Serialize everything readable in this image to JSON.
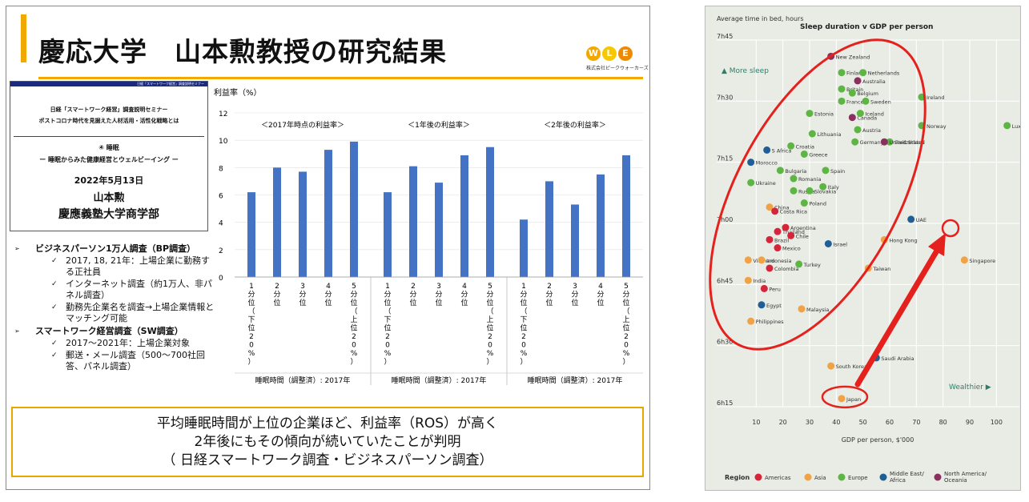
{
  "slide": {
    "title": "慶応大学　山本勲教授の研究結果",
    "logo": {
      "letters": [
        "W",
        "L",
        "E"
      ],
      "subtitle": "株式会社ピークウォーカーズ"
    },
    "cover": {
      "header_small": "日経「スマートワーク経営」調査説明セミナー",
      "line1": "日経「スマートワーク経営」調査説明セミナー",
      "line2": "ポストコロナ時代を見据えた人材活用・活性化戦略とは",
      "line3": "④ 睡眠",
      "line4": "ー 睡眠からみた健康経営とウェルビーイング ー",
      "date": "2022年5月13日",
      "name": "山本勲",
      "affiliation": "慶應義塾大学商学部"
    },
    "bullets": [
      {
        "level": 1,
        "text": "ビジネスパーソン1万人調査（BP調査）"
      },
      {
        "level": 2,
        "text": "2017, 18, 21年：上場企業に勤務する正社員"
      },
      {
        "level": 2,
        "text": "インターネット調査（約1万人、非パネル調査）"
      },
      {
        "level": 2,
        "text": "勤務先企業名を調査→上場企業情報とマッチング可能"
      },
      {
        "level": 1,
        "text": "スマートワーク経営調査（SW調査）"
      },
      {
        "level": 2,
        "text": "2017～2021年：上場企業対象"
      },
      {
        "level": 2,
        "text": "郵送・メール調査（500～700社回答、パネル調査）"
      }
    ],
    "summary": [
      "平均睡眠時間が上位の企業ほど、利益率（ROS）が高く",
      "2年後にもその傾向が続いていたことが判明",
      "（ 日経スマートワーク調査・ビジネスパーソン調査）"
    ]
  },
  "chart_data": [
    {
      "type": "bar",
      "ylabel": "利益率（%）",
      "ylim": [
        0,
        12
      ],
      "yticks": [
        0,
        2,
        4,
        6,
        8,
        10,
        12
      ],
      "categories": [
        "1分位（下位20%）",
        "2分位",
        "3分位",
        "4分位",
        "5分位（上位20%）"
      ],
      "bar_color": "#4472c4",
      "panels": [
        {
          "title": "＜2017年時点の利益率＞",
          "xlabel": "睡眠時間（調整済）: 2017年",
          "values": [
            6.2,
            8.0,
            7.7,
            9.3,
            9.9
          ]
        },
        {
          "title": "＜1年後の利益率＞",
          "xlabel": "睡眠時間（調整済）: 2017年",
          "values": [
            6.2,
            8.1,
            6.9,
            8.9,
            9.5
          ]
        },
        {
          "title": "＜2年後の利益率＞",
          "xlabel": "睡眠時間（調整済）: 2017年",
          "values": [
            4.2,
            7.0,
            5.3,
            7.5,
            8.9
          ]
        }
      ]
    },
    {
      "type": "scatter",
      "title": "Sleep duration v GDP per person",
      "ylabel": "Average time in bed, hours",
      "xlabel": "GDP per person, $'000",
      "xlim": [
        0,
        105
      ],
      "xticks": [
        10,
        20,
        30,
        40,
        50,
        60,
        70,
        80,
        90,
        100
      ],
      "ylim": [
        375,
        465
      ],
      "yticks": [
        {
          "v": 465,
          "label": "7h45"
        },
        {
          "v": 450,
          "label": "7h30"
        },
        {
          "v": 435,
          "label": "7h15"
        },
        {
          "v": 420,
          "label": "7h00"
        },
        {
          "v": 405,
          "label": "6h45"
        },
        {
          "v": 390,
          "label": "6h30"
        },
        {
          "v": 375,
          "label": "6h15"
        }
      ],
      "annotations": {
        "more_sleep": "More sleep",
        "wealthier": "Wealthier"
      },
      "legend": {
        "label": "Region",
        "entries": [
          {
            "key": "americas",
            "name": "Americas",
            "color": "#d6243b"
          },
          {
            "key": "asia",
            "name": "Asia",
            "color": "#f0a245"
          },
          {
            "key": "europe",
            "name": "Europe",
            "color": "#5db544"
          },
          {
            "key": "mideast",
            "name": "Middle East/ Africa",
            "color": "#1f5e96"
          },
          {
            "key": "namerica",
            "name": "North America/ Oceania",
            "color": "#8a2f60"
          }
        ]
      },
      "points": [
        {
          "name": "New Zealand",
          "x": 38,
          "y": 461,
          "region": "namerica"
        },
        {
          "name": "Finland",
          "x": 42,
          "y": 457,
          "region": "europe"
        },
        {
          "name": "Netherlands",
          "x": 50,
          "y": 457,
          "region": "europe"
        },
        {
          "name": "Australia",
          "x": 48,
          "y": 455,
          "region": "namerica"
        },
        {
          "name": "Britain",
          "x": 42,
          "y": 453,
          "region": "europe"
        },
        {
          "name": "Belgium",
          "x": 46,
          "y": 452,
          "region": "europe"
        },
        {
          "name": "Ireland",
          "x": 72,
          "y": 451,
          "region": "europe"
        },
        {
          "name": "France",
          "x": 42,
          "y": 450,
          "region": "europe"
        },
        {
          "name": "Sweden",
          "x": 51,
          "y": 450,
          "region": "europe"
        },
        {
          "name": "Estonia",
          "x": 30,
          "y": 447,
          "region": "europe"
        },
        {
          "name": "Canada",
          "x": 46,
          "y": 446,
          "region": "namerica"
        },
        {
          "name": "Iceland",
          "x": 49,
          "y": 447,
          "region": "europe"
        },
        {
          "name": "Norway",
          "x": 72,
          "y": 444,
          "region": "europe"
        },
        {
          "name": "Luxembourg",
          "x": 104,
          "y": 444,
          "region": "europe"
        },
        {
          "name": "Lithuania",
          "x": 31,
          "y": 442,
          "region": "europe"
        },
        {
          "name": "Austria",
          "x": 48,
          "y": 443,
          "region": "europe"
        },
        {
          "name": "Germany",
          "x": 47,
          "y": 440,
          "region": "europe"
        },
        {
          "name": "Switzerland",
          "x": 60,
          "y": 440,
          "region": "europe"
        },
        {
          "name": "United States",
          "x": 58,
          "y": 440,
          "region": "namerica"
        },
        {
          "name": "S Africa",
          "x": 14,
          "y": 438,
          "region": "mideast"
        },
        {
          "name": "Croatia",
          "x": 23,
          "y": 439,
          "region": "europe"
        },
        {
          "name": "Greece",
          "x": 28,
          "y": 437,
          "region": "europe"
        },
        {
          "name": "Morocco",
          "x": 8,
          "y": 435,
          "region": "mideast"
        },
        {
          "name": "Bulgaria",
          "x": 19,
          "y": 433,
          "region": "europe"
        },
        {
          "name": "Spain",
          "x": 36,
          "y": 433,
          "region": "europe"
        },
        {
          "name": "Romania",
          "x": 24,
          "y": 431,
          "region": "europe"
        },
        {
          "name": "Ukraine",
          "x": 8,
          "y": 430,
          "region": "europe"
        },
        {
          "name": "Italy",
          "x": 35,
          "y": 429,
          "region": "europe"
        },
        {
          "name": "Russia",
          "x": 24,
          "y": 428,
          "region": "europe"
        },
        {
          "name": "Slovakia",
          "x": 30,
          "y": 428,
          "region": "europe"
        },
        {
          "name": "China",
          "x": 15,
          "y": 424,
          "region": "asia"
        },
        {
          "name": "Poland",
          "x": 28,
          "y": 425,
          "region": "europe"
        },
        {
          "name": "Costa Rica",
          "x": 17,
          "y": 423,
          "region": "americas"
        },
        {
          "name": "UAE",
          "x": 68,
          "y": 421,
          "region": "mideast"
        },
        {
          "name": "Thailand",
          "x": 18,
          "y": 418,
          "region": "americas"
        },
        {
          "name": "Argentina",
          "x": 21,
          "y": 419,
          "region": "americas"
        },
        {
          "name": "Chile",
          "x": 23,
          "y": 417,
          "region": "americas"
        },
        {
          "name": "Hong Kong",
          "x": 58,
          "y": 416,
          "region": "asia"
        },
        {
          "name": "Brazil",
          "x": 15,
          "y": 416,
          "region": "americas"
        },
        {
          "name": "Israel",
          "x": 37,
          "y": 415,
          "region": "mideast"
        },
        {
          "name": "Mexico",
          "x": 18,
          "y": 414,
          "region": "americas"
        },
        {
          "name": "Vietnam",
          "x": 7,
          "y": 411,
          "region": "asia"
        },
        {
          "name": "Indonesia",
          "x": 12,
          "y": 411,
          "region": "asia"
        },
        {
          "name": "Singapore",
          "x": 88,
          "y": 411,
          "region": "asia"
        },
        {
          "name": "Turkey",
          "x": 26,
          "y": 410,
          "region": "europe"
        },
        {
          "name": "Taiwan",
          "x": 52,
          "y": 409,
          "region": "asia"
        },
        {
          "name": "Colombia",
          "x": 15,
          "y": 409,
          "region": "americas"
        },
        {
          "name": "India",
          "x": 7,
          "y": 406,
          "region": "asia"
        },
        {
          "name": "Peru",
          "x": 13,
          "y": 404,
          "region": "americas"
        },
        {
          "name": "Egypt",
          "x": 12,
          "y": 400,
          "region": "mideast"
        },
        {
          "name": "Malaysia",
          "x": 27,
          "y": 399,
          "region": "asia"
        },
        {
          "name": "Philippines",
          "x": 8,
          "y": 396,
          "region": "asia"
        },
        {
          "name": "Saudi Arabia",
          "x": 55,
          "y": 387,
          "region": "mideast"
        },
        {
          "name": "South Korea",
          "x": 38,
          "y": 385,
          "region": "asia"
        },
        {
          "name": "Japan",
          "x": 42,
          "y": 377,
          "region": "asia"
        }
      ]
    }
  ]
}
